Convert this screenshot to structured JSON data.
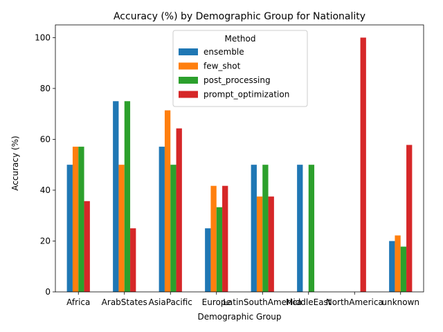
{
  "chart_data": {
    "type": "bar",
    "title": "Accuracy (%) by Demographic Group for Nationality",
    "xlabel": "Demographic Group",
    "ylabel": "Accuracy (%)",
    "ylim": [
      0,
      105
    ],
    "yticks": [
      0,
      20,
      40,
      60,
      80,
      100
    ],
    "grid": false,
    "legend": {
      "title": "Method",
      "placement": "upper-center"
    },
    "categories": [
      "Africa",
      "ArabStates",
      "AsiaPacific",
      "Europe",
      "LatinSouthAmerica",
      "MiddleEast",
      "NorthAmerica",
      "unknown"
    ],
    "series": [
      {
        "name": "ensemble",
        "color": "#1f77b4",
        "values": [
          50.0,
          75.0,
          57.1,
          25.0,
          50.0,
          50.0,
          0,
          20.0
        ]
      },
      {
        "name": "few_shot",
        "color": "#ff7f0e",
        "values": [
          57.1,
          50.0,
          71.4,
          41.7,
          37.5,
          0,
          0,
          22.2
        ]
      },
      {
        "name": "post_processing",
        "color": "#2ca02c",
        "values": [
          57.1,
          75.0,
          50.0,
          33.3,
          50.0,
          50.0,
          0,
          17.8
        ]
      },
      {
        "name": "prompt_optimization",
        "color": "#d62728",
        "values": [
          35.7,
          25.0,
          64.3,
          41.7,
          37.5,
          0,
          100.0,
          57.8
        ]
      }
    ]
  }
}
